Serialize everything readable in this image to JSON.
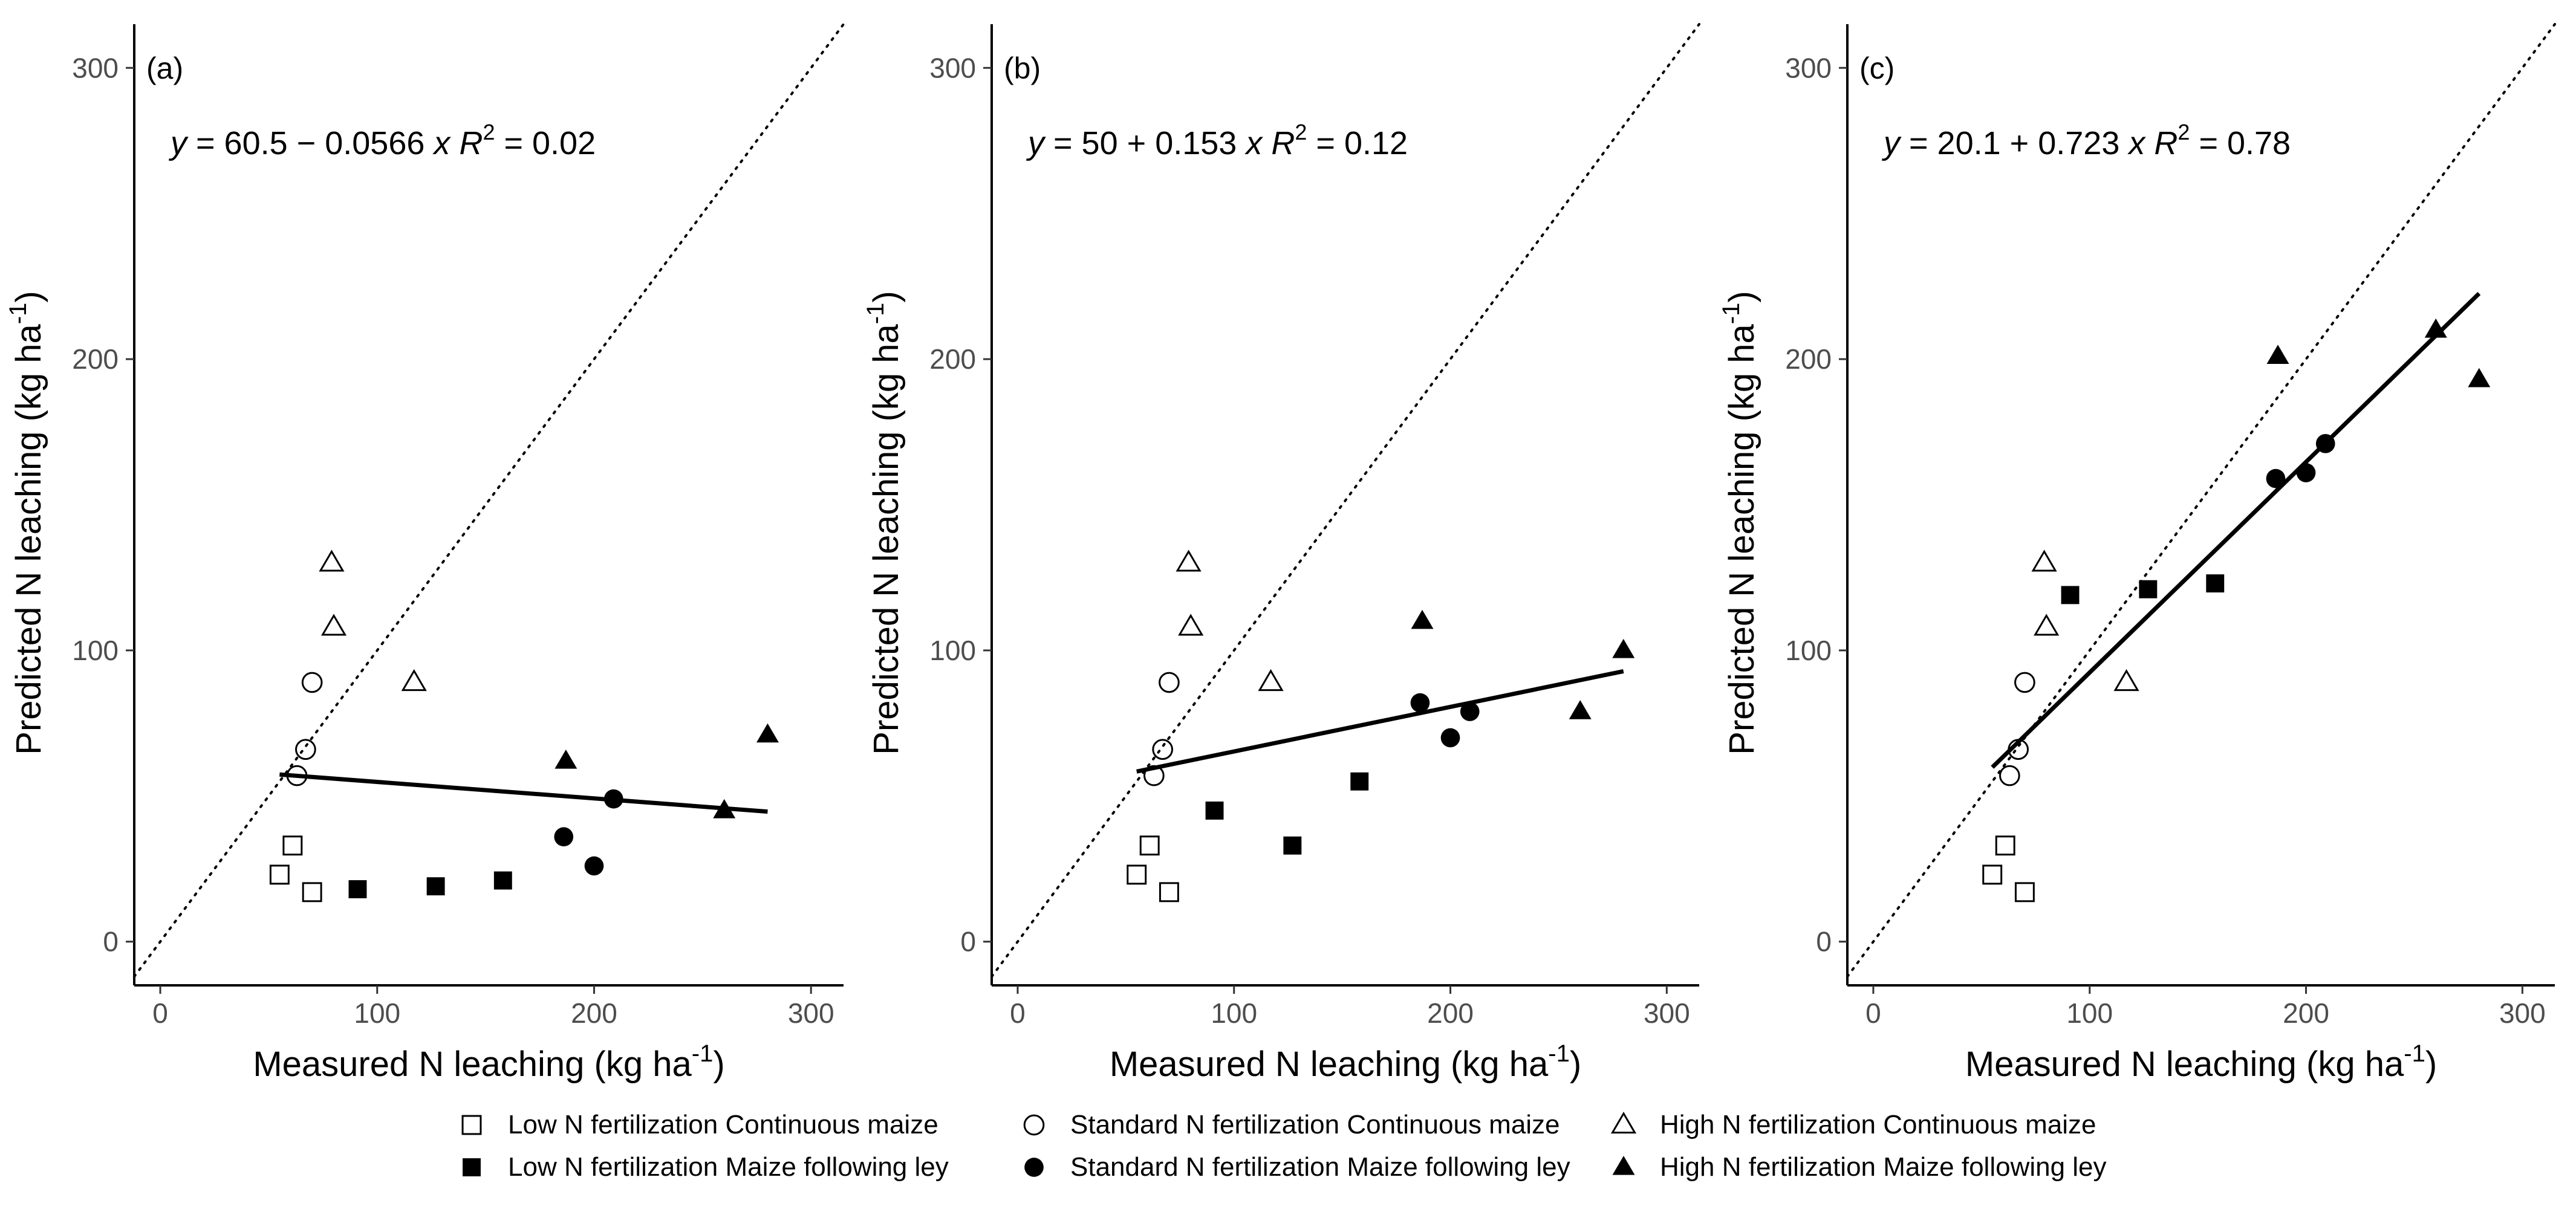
{
  "chart_data": [
    {
      "type": "scatter",
      "panel_label": "(a)",
      "xlabel": "Measured N leaching (kg ha",
      "ylabel": "Predicted N leaching (kg ha",
      "unit_superscript": "-1",
      "unit_close": ")",
      "xlim": [
        -12,
        315
      ],
      "ylim": [
        -15,
        315
      ],
      "xticks": [
        0,
        100,
        200,
        300
      ],
      "yticks": [
        0,
        100,
        200,
        300
      ],
      "equation": {
        "y_label": "y",
        "intercept": "60.5",
        "sign": "−",
        "slope": "0.0566",
        "x_label": "x",
        "r2_label": "R",
        "r2_exp": "2",
        "r2_value": "= 0.02"
      },
      "regression": {
        "intercept": 60.5,
        "slope": -0.0566,
        "x_range": [
          55,
          280
        ]
      },
      "one_to_one_line": true,
      "series": [
        {
          "name": "Low N fertilization Continuous maize",
          "marker": "square-open",
          "points": [
            [
              55,
              23
            ],
            [
              61,
              33
            ],
            [
              70,
              17
            ]
          ]
        },
        {
          "name": "Standard N fertilization Continuous maize",
          "marker": "circle-open",
          "points": [
            [
              63,
              57
            ],
            [
              67,
              66
            ],
            [
              70,
              89
            ]
          ]
        },
        {
          "name": "High N fertilization Continuous maize",
          "marker": "triangle-open",
          "points": [
            [
              79,
              130
            ],
            [
              80,
              108
            ],
            [
              117,
              89
            ]
          ]
        },
        {
          "name": "Low N fertilization Maize following ley",
          "marker": "square-filled",
          "points": [
            [
              91,
              18
            ],
            [
              127,
              19
            ],
            [
              158,
              21
            ]
          ]
        },
        {
          "name": "Standard N fertilization Maize following ley",
          "marker": "circle-filled",
          "points": [
            [
              186,
              36
            ],
            [
              200,
              26
            ],
            [
              209,
              49
            ]
          ]
        },
        {
          "name": "High N fertilization Maize following ley",
          "marker": "triangle-filled",
          "points": [
            [
              187,
              62
            ],
            [
              260,
              45
            ],
            [
              280,
              71
            ]
          ]
        }
      ]
    },
    {
      "type": "scatter",
      "panel_label": "(b)",
      "xlabel": "Measured N leaching (kg ha",
      "ylabel": "Predicted N leaching (kg ha",
      "unit_superscript": "-1",
      "unit_close": ")",
      "xlim": [
        -12,
        315
      ],
      "ylim": [
        -15,
        315
      ],
      "xticks": [
        0,
        100,
        200,
        300
      ],
      "yticks": [
        0,
        100,
        200,
        300
      ],
      "equation": {
        "y_label": "y",
        "intercept": "50",
        "sign": "+",
        "slope": "0.153",
        "x_label": "x",
        "r2_label": "R",
        "r2_exp": "2",
        "r2_value": "= 0.12"
      },
      "regression": {
        "intercept": 50,
        "slope": 0.153,
        "x_range": [
          55,
          280
        ]
      },
      "one_to_one_line": true,
      "series": [
        {
          "name": "Low N fertilization Continuous maize",
          "marker": "square-open",
          "points": [
            [
              55,
              23
            ],
            [
              61,
              33
            ],
            [
              70,
              17
            ]
          ]
        },
        {
          "name": "Standard N fertilization Continuous maize",
          "marker": "circle-open",
          "points": [
            [
              63,
              57
            ],
            [
              67,
              66
            ],
            [
              70,
              89
            ]
          ]
        },
        {
          "name": "High N fertilization Continuous maize",
          "marker": "triangle-open",
          "points": [
            [
              79,
              130
            ],
            [
              80,
              108
            ],
            [
              117,
              89
            ]
          ]
        },
        {
          "name": "Low N fertilization Maize following ley",
          "marker": "square-filled",
          "points": [
            [
              91,
              45
            ],
            [
              127,
              33
            ],
            [
              158,
              55
            ]
          ]
        },
        {
          "name": "Standard N fertilization Maize following ley",
          "marker": "circle-filled",
          "points": [
            [
              186,
              82
            ],
            [
              200,
              70
            ],
            [
              209,
              79
            ]
          ]
        },
        {
          "name": "High N fertilization Maize following ley",
          "marker": "triangle-filled",
          "points": [
            [
              187,
              110
            ],
            [
              260,
              79
            ],
            [
              280,
              100
            ]
          ]
        }
      ]
    },
    {
      "type": "scatter",
      "panel_label": "(c)",
      "xlabel": "Measured N leaching (kg ha",
      "ylabel": "Predicted N leaching (kg ha",
      "unit_superscript": "-1",
      "unit_close": ")",
      "xlim": [
        -12,
        315
      ],
      "ylim": [
        -15,
        315
      ],
      "xticks": [
        0,
        100,
        200,
        300
      ],
      "yticks": [
        0,
        100,
        200,
        300
      ],
      "equation": {
        "y_label": "y",
        "intercept": "20.1",
        "sign": "+",
        "slope": "0.723",
        "x_label": "x",
        "r2_label": "R",
        "r2_exp": "2",
        "r2_value": "= 0.78"
      },
      "regression": {
        "intercept": 20.1,
        "slope": 0.723,
        "x_range": [
          55,
          280
        ]
      },
      "one_to_one_line": true,
      "series": [
        {
          "name": "Low N fertilization Continuous maize",
          "marker": "square-open",
          "points": [
            [
              55,
              23
            ],
            [
              61,
              33
            ],
            [
              70,
              17
            ]
          ]
        },
        {
          "name": "Standard N fertilization Continuous maize",
          "marker": "circle-open",
          "points": [
            [
              63,
              57
            ],
            [
              67,
              66
            ],
            [
              70,
              89
            ]
          ]
        },
        {
          "name": "High N fertilization Continuous maize",
          "marker": "triangle-open",
          "points": [
            [
              79,
              130
            ],
            [
              80,
              108
            ],
            [
              117,
              89
            ]
          ]
        },
        {
          "name": "Low N fertilization Maize following ley",
          "marker": "square-filled",
          "points": [
            [
              91,
              119
            ],
            [
              127,
              121
            ],
            [
              158,
              123
            ]
          ]
        },
        {
          "name": "Standard N fertilization Maize following ley",
          "marker": "circle-filled",
          "points": [
            [
              186,
              159
            ],
            [
              200,
              161
            ],
            [
              209,
              171
            ]
          ]
        },
        {
          "name": "High N fertilization Maize following ley",
          "marker": "triangle-filled",
          "points": [
            [
              187,
              201
            ],
            [
              260,
              210
            ],
            [
              280,
              193
            ]
          ]
        }
      ]
    }
  ],
  "legend": {
    "placement": "bottom",
    "items": [
      {
        "label": "Low N fertilization Continuous maize",
        "marker": "square-open"
      },
      {
        "label": "Standard N fertilization Continuous maize",
        "marker": "circle-open"
      },
      {
        "label": "High N fertilization Continuous maize",
        "marker": "triangle-open"
      },
      {
        "label": "Low N fertilization Maize following ley",
        "marker": "square-filled"
      },
      {
        "label": "Standard N fertilization Maize following ley",
        "marker": "circle-filled"
      },
      {
        "label": "High N fertilization Maize following ley",
        "marker": "triangle-filled"
      }
    ]
  },
  "colors": {
    "marker": "#000000",
    "axis": "#000000",
    "tick_label": "#4d4d4d",
    "background": "#ffffff"
  }
}
